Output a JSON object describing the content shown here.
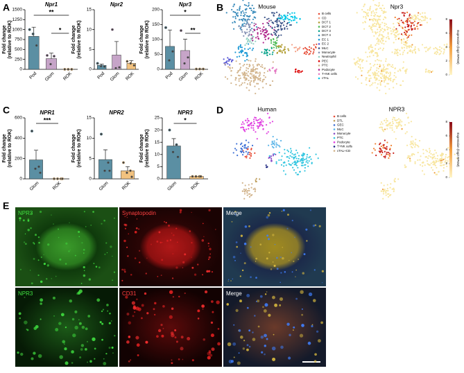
{
  "panel_labels": [
    "A",
    "B",
    "C",
    "D",
    "E"
  ],
  "chart_data": [
    {
      "type": "bar",
      "title": "Npr1",
      "ylabel": [
        "Fold change",
        "(relative to ROK)"
      ],
      "categories": [
        "Pod",
        "Glom",
        "ROK"
      ],
      "colors": [
        "#5b8fa3",
        "#c6a4c8",
        "#f2c27f"
      ],
      "values": [
        830,
        270,
        1
      ],
      "errors": [
        230,
        140,
        0
      ],
      "points": [
        [
          1000,
          600,
          890
        ],
        [
          350,
          330,
          130
        ],
        [
          1,
          1,
          1
        ]
      ],
      "ylim": [
        0,
        1500
      ],
      "yticks": [
        0,
        250,
        500,
        750,
        1000,
        1250,
        1500
      ],
      "significance": [
        {
          "label": "**",
          "from": 0,
          "to": 2
        },
        {
          "label": "*",
          "from": 1,
          "to": 2
        }
      ]
    },
    {
      "type": "bar",
      "title": "Npr2",
      "ylabel": [
        "Fold change",
        "(relative to ROK)"
      ],
      "categories": [
        "Pod",
        "Glom",
        "ROK"
      ],
      "colors": [
        "#5b8fa3",
        "#c6a4c8",
        "#f2c27f"
      ],
      "values": [
        1,
        3.6,
        1.5
      ],
      "errors": [
        0.3,
        3.4,
        0.7
      ],
      "points": [
        [
          1.5,
          0.7,
          0.8
        ],
        [
          10,
          0.5,
          0.3
        ],
        [
          2,
          1,
          1.5
        ]
      ],
      "ylim": [
        0,
        15
      ],
      "yticks": [
        0,
        5,
        10,
        15
      ],
      "significance": []
    },
    {
      "type": "bar",
      "title": "Npr3",
      "ylabel": [
        "Fold change",
        "(relative to ROK)"
      ],
      "categories": [
        "Pod",
        "Glom",
        "ROK"
      ],
      "colors": [
        "#5b8fa3",
        "#c6a4c8",
        "#f2c27f"
      ],
      "values": [
        77,
        63,
        1
      ],
      "errors": [
        55,
        38,
        0
      ],
      "points": [
        [
          140,
          60,
          30
        ],
        [
          130,
          40,
          20
        ],
        [
          1,
          1,
          1
        ]
      ],
      "ylim": [
        0,
        200
      ],
      "yticks": [
        0,
        50,
        100,
        150,
        200
      ],
      "significance": [
        {
          "label": "*",
          "from": 0,
          "to": 2
        },
        {
          "label": "**",
          "from": 1,
          "to": 2
        }
      ]
    },
    {
      "type": "bar",
      "title": "NPR1",
      "ylabel": [
        "Fold change",
        "(relative to ROK)"
      ],
      "categories": [
        "Glom",
        "ROK"
      ],
      "colors": [
        "#5b8fa3",
        "#f2c27f"
      ],
      "values": [
        187,
        1
      ],
      "errors": [
        95,
        0
      ],
      "points": [
        [
          470,
          120,
          100,
          60
        ],
        [
          1,
          1,
          1,
          1
        ]
      ],
      "ylim": [
        0,
        600
      ],
      "yticks": [
        0,
        200,
        400,
        600
      ],
      "significance": [
        {
          "label": "***",
          "from": 0,
          "to": 1
        }
      ]
    },
    {
      "type": "bar",
      "title": "NPR2",
      "ylabel": [
        "Fold change",
        "(relative to ROK)"
      ],
      "categories": [
        "Glom",
        "ROK"
      ],
      "colors": [
        "#5b8fa3",
        "#f2c27f"
      ],
      "values": [
        4.75,
        2
      ],
      "errors": [
        2.4,
        1
      ],
      "points": [
        [
          11,
          4,
          2,
          2
        ],
        [
          4,
          2,
          1.5,
          0.5
        ]
      ],
      "ylim": [
        0,
        15
      ],
      "yticks": [
        0,
        5,
        10,
        15
      ],
      "significance": []
    },
    {
      "type": "bar",
      "title": "NPR3",
      "ylabel": [
        "Fold change",
        "(relative to ROK)"
      ],
      "categories": [
        "Glom",
        "ROK"
      ],
      "colors": [
        "#5b8fa3",
        "#f2c27f"
      ],
      "values": [
        13.5,
        1
      ],
      "errors": [
        3,
        0
      ],
      "points": [
        [
          20,
          14,
          11,
          9
        ],
        [
          1,
          1,
          1,
          1
        ]
      ],
      "ylim": [
        0,
        25
      ],
      "yticks": [
        0,
        5,
        10,
        15,
        20,
        25
      ],
      "significance": [
        {
          "label": "*",
          "from": 0,
          "to": 1
        }
      ]
    }
  ],
  "umap": [
    {
      "title": "Mouse",
      "feature_title": "Npr3",
      "legend": [
        {
          "name": "B cells",
          "color": "#e64b35"
        },
        {
          "name": "CD",
          "color": "#f39b7f"
        },
        {
          "name": "DCT 1",
          "color": "#b09c30"
        },
        {
          "name": "DCT 2",
          "color": "#4dbb55"
        },
        {
          "name": "DCT 3",
          "color": "#00a087"
        },
        {
          "name": "DCT 4",
          "color": "#3c8dbc"
        },
        {
          "name": "EC 1",
          "color": "#1f9ad6"
        },
        {
          "name": "EC 2",
          "color": "#5b5bd6"
        },
        {
          "name": "MLC",
          "color": "#3c5488"
        },
        {
          "name": "Monocyte",
          "color": "#8491b4"
        },
        {
          "name": "Neutrophil",
          "color": "#91d1c2"
        },
        {
          "name": "PEC",
          "color": "#dc0000"
        },
        {
          "name": "PTC",
          "color": "#d2b48c"
        },
        {
          "name": "Podocyte",
          "color": "#b0288c"
        },
        {
          "name": "T+NK cells",
          "color": "#e377c2"
        },
        {
          "name": "cTAL",
          "color": "#00c8e8"
        }
      ],
      "colorbar_title": "Expression (log2 RPKM)",
      "colorbar_ticks": [
        0,
        2,
        4,
        6,
        8
      ]
    },
    {
      "title": "Human",
      "feature_title": "NPR3",
      "legend": [
        {
          "name": "B cells",
          "color": "#e64b35"
        },
        {
          "name": "DTL",
          "color": "#c0a060"
        },
        {
          "name": "GEC",
          "color": "#3c6fd6"
        },
        {
          "name": "MLC",
          "color": "#5ab4e8"
        },
        {
          "name": "Monocyte",
          "color": "#8a4fc8"
        },
        {
          "name": "PTC",
          "color": "#33c6e0"
        },
        {
          "name": "Podocyte",
          "color": "#e040e0"
        },
        {
          "name": "T+NK cells",
          "color": "#1a237e"
        },
        {
          "name": "cTAL+CD",
          "color": "#d2b48c"
        }
      ],
      "colorbar_title": "Expression (log2 RPKM)",
      "colorbar_ticks": [
        0,
        2,
        4,
        6,
        8
      ]
    }
  ],
  "micrographs": [
    [
      "NPR3",
      "Synaptopodin",
      "Merge"
    ],
    [
      "NPR3",
      "CD31",
      "Merge"
    ]
  ]
}
